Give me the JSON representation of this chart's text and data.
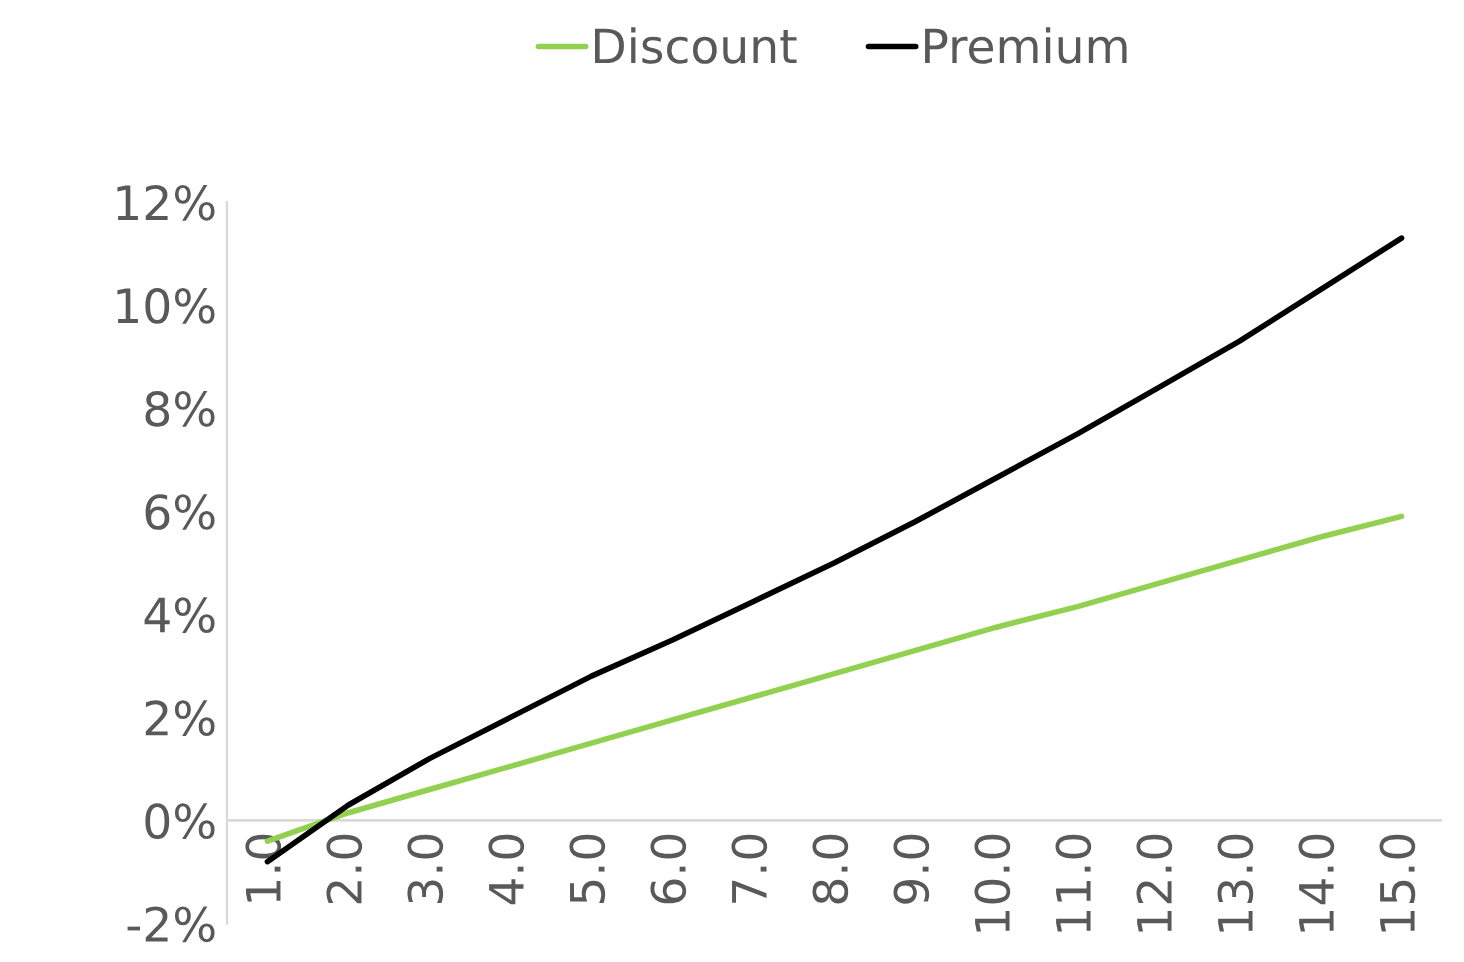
{
  "chart_data": {
    "type": "line",
    "categories": [
      "1.0",
      "2.0",
      "3.0",
      "4.0",
      "5.0",
      "6.0",
      "7.0",
      "8.0",
      "9.0",
      "10.0",
      "11.0",
      "12.0",
      "13.0",
      "14.0",
      "15.0"
    ],
    "series": [
      {
        "name": "Discount",
        "color": "#92d050",
        "values": [
          -0.4,
          0.15,
          0.6,
          1.05,
          1.5,
          1.95,
          2.4,
          2.85,
          3.3,
          3.75,
          4.15,
          4.6,
          5.05,
          5.5,
          5.9
        ]
      },
      {
        "name": "Premium",
        "color": "#000000",
        "values": [
          -0.8,
          0.3,
          1.2,
          2.0,
          2.8,
          3.5,
          4.25,
          5.0,
          5.8,
          6.65,
          7.5,
          8.4,
          9.3,
          10.3,
          11.3
        ]
      }
    ],
    "ylim": [
      -2,
      12
    ],
    "yticks": [
      {
        "value": -2,
        "label": "-2%"
      },
      {
        "value": 0,
        "label": "0%"
      },
      {
        "value": 2,
        "label": "2%"
      },
      {
        "value": 4,
        "label": "4%"
      },
      {
        "value": 6,
        "label": "6%"
      },
      {
        "value": 8,
        "label": "8%"
      },
      {
        "value": 10,
        "label": "10%"
      },
      {
        "value": 12,
        "label": "12%"
      }
    ],
    "legend": "top",
    "grid": false,
    "marker": "none",
    "line_style": "solid"
  }
}
